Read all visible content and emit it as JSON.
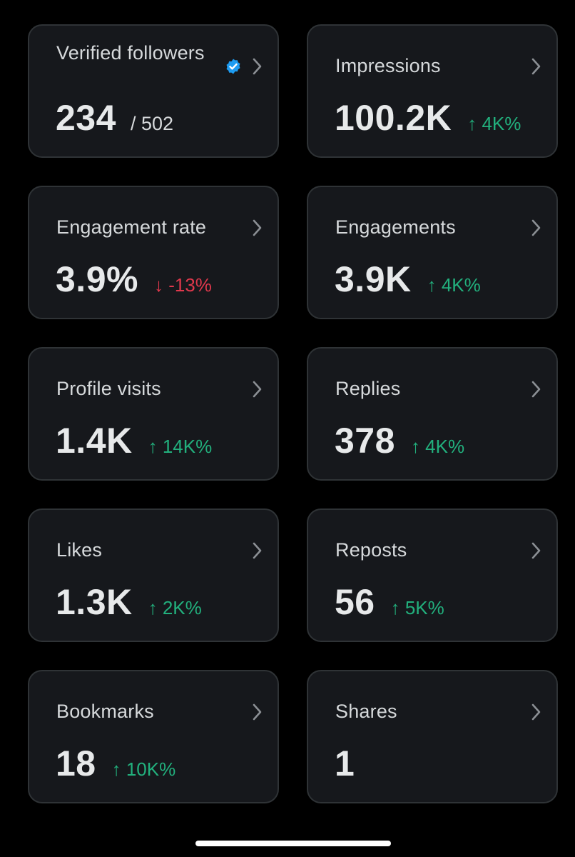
{
  "metrics": [
    {
      "label": "Verified followers",
      "value": "234",
      "denominator": "/ 502",
      "change": "",
      "direction": "",
      "verified_icon": "verified-badge-icon"
    },
    {
      "label": "Impressions",
      "value": "100.2K",
      "change": "↑ 4K%",
      "direction": "up"
    },
    {
      "label": "Engagement rate",
      "value": "3.9%",
      "change": "↓ -13%",
      "direction": "down"
    },
    {
      "label": "Engagements",
      "value": "3.9K",
      "change": "↑ 4K%",
      "direction": "up"
    },
    {
      "label": "Profile visits",
      "value": "1.4K",
      "change": "↑ 14K%",
      "direction": "up"
    },
    {
      "label": "Replies",
      "value": "378",
      "change": "↑ 4K%",
      "direction": "up"
    },
    {
      "label": "Likes",
      "value": "1.3K",
      "change": "↑ 2K%",
      "direction": "up"
    },
    {
      "label": "Reposts",
      "value": "56",
      "change": "↑ 5K%",
      "direction": "up"
    },
    {
      "label": "Bookmarks",
      "value": "18",
      "change": "↑ 10K%",
      "direction": "up"
    },
    {
      "label": "Shares",
      "value": "1",
      "change": "",
      "direction": ""
    }
  ],
  "colors": {
    "background": "#000000",
    "card": "#16181c",
    "up": "#22b07d",
    "down": "#e0384c",
    "verified": "#1d9bf0"
  },
  "icons": {
    "chevron": "chevron-right-icon",
    "verified": "verified-badge-icon"
  }
}
